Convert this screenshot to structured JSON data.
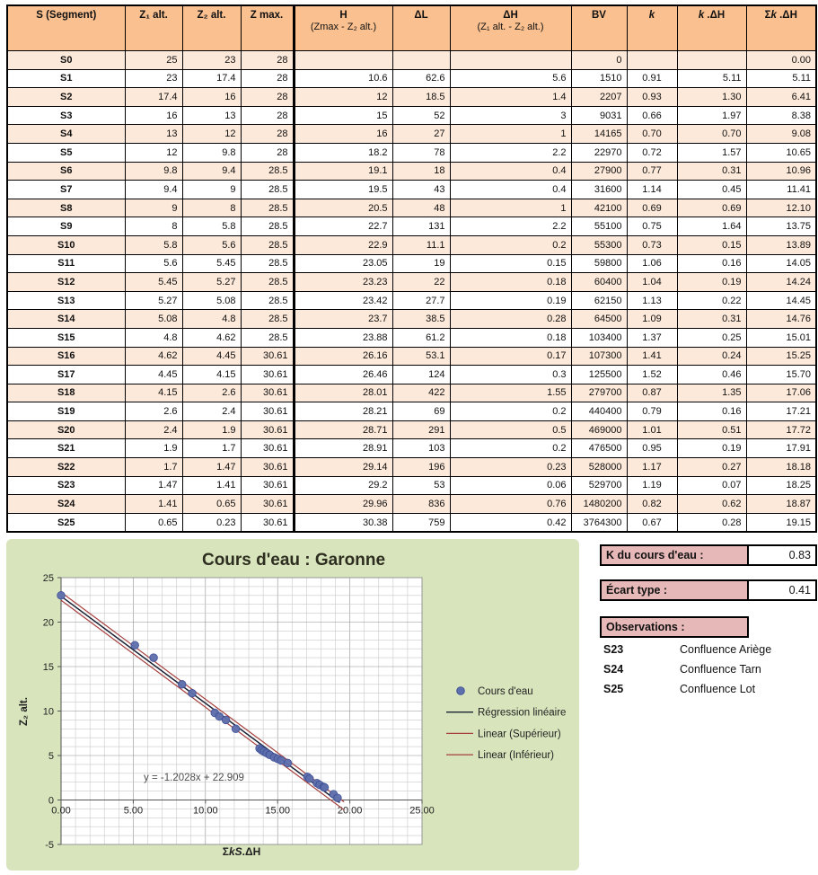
{
  "table": {
    "headers": [
      {
        "post": "S (Segment)"
      },
      {
        "post": "Z₁ alt."
      },
      {
        "post": "Z₂ alt."
      },
      {
        "post": "Z max."
      },
      {
        "post": "H",
        "sub": "(Zmax - Z₂ alt.)"
      },
      {
        "post": "ΔL"
      },
      {
        "post": "ΔH",
        "sub": "(Z₁ alt. - Z₂ alt.)"
      },
      {
        "post": "BV"
      },
      {
        "it": "k"
      },
      {
        "it": "k",
        "post": " .ΔH"
      },
      {
        "pre": "Σ",
        "it": "k",
        "post": " .ΔH"
      }
    ],
    "rows": [
      {
        "id": "S0",
        "cells": [
          "25",
          "23",
          "28",
          "",
          "",
          "",
          "0",
          "",
          "",
          "0.00"
        ]
      },
      {
        "id": "S1",
        "cells": [
          "23",
          "17.4",
          "28",
          "10.6",
          "62.6",
          "5.6",
          "1510",
          "0.91",
          "5.11",
          "5.11"
        ]
      },
      {
        "id": "S2",
        "cells": [
          "17.4",
          "16",
          "28",
          "12",
          "18.5",
          "1.4",
          "2207",
          "0.93",
          "1.30",
          "6.41"
        ]
      },
      {
        "id": "S3",
        "cells": [
          "16",
          "13",
          "28",
          "15",
          "52",
          "3",
          "9031",
          "0.66",
          "1.97",
          "8.38"
        ]
      },
      {
        "id": "S4",
        "cells": [
          "13",
          "12",
          "28",
          "16",
          "27",
          "1",
          "14165",
          "0.70",
          "0.70",
          "9.08"
        ]
      },
      {
        "id": "S5",
        "cells": [
          "12",
          "9.8",
          "28",
          "18.2",
          "78",
          "2.2",
          "22970",
          "0.72",
          "1.57",
          "10.65"
        ]
      },
      {
        "id": "S6",
        "cells": [
          "9.8",
          "9.4",
          "28.5",
          "19.1",
          "18",
          "0.4",
          "27900",
          "0.77",
          "0.31",
          "10.96"
        ]
      },
      {
        "id": "S7",
        "cells": [
          "9.4",
          "9",
          "28.5",
          "19.5",
          "43",
          "0.4",
          "31600",
          "1.14",
          "0.45",
          "11.41"
        ]
      },
      {
        "id": "S8",
        "cells": [
          "9",
          "8",
          "28.5",
          "20.5",
          "48",
          "1",
          "42100",
          "0.69",
          "0.69",
          "12.10"
        ]
      },
      {
        "id": "S9",
        "cells": [
          "8",
          "5.8",
          "28.5",
          "22.7",
          "131",
          "2.2",
          "55100",
          "0.75",
          "1.64",
          "13.75"
        ]
      },
      {
        "id": "S10",
        "cells": [
          "5.8",
          "5.6",
          "28.5",
          "22.9",
          "11.1",
          "0.2",
          "55300",
          "0.73",
          "0.15",
          "13.89"
        ]
      },
      {
        "id": "S11",
        "cells": [
          "5.6",
          "5.45",
          "28.5",
          "23.05",
          "19",
          "0.15",
          "59800",
          "1.06",
          "0.16",
          "14.05"
        ]
      },
      {
        "id": "S12",
        "cells": [
          "5.45",
          "5.27",
          "28.5",
          "23.23",
          "22",
          "0.18",
          "60400",
          "1.04",
          "0.19",
          "14.24"
        ]
      },
      {
        "id": "S13",
        "cells": [
          "5.27",
          "5.08",
          "28.5",
          "23.42",
          "27.7",
          "0.19",
          "62150",
          "1.13",
          "0.22",
          "14.45"
        ]
      },
      {
        "id": "S14",
        "cells": [
          "5.08",
          "4.8",
          "28.5",
          "23.7",
          "38.5",
          "0.28",
          "64500",
          "1.09",
          "0.31",
          "14.76"
        ]
      },
      {
        "id": "S15",
        "cells": [
          "4.8",
          "4.62",
          "28.5",
          "23.88",
          "61.2",
          "0.18",
          "103400",
          "1.37",
          "0.25",
          "15.01"
        ]
      },
      {
        "id": "S16",
        "cells": [
          "4.62",
          "4.45",
          "30.61",
          "26.16",
          "53.1",
          "0.17",
          "107300",
          "1.41",
          "0.24",
          "15.25"
        ]
      },
      {
        "id": "S17",
        "cells": [
          "4.45",
          "4.15",
          "30.61",
          "26.46",
          "124",
          "0.3",
          "125500",
          "1.52",
          "0.46",
          "15.70"
        ]
      },
      {
        "id": "S18",
        "cells": [
          "4.15",
          "2.6",
          "30.61",
          "28.01",
          "422",
          "1.55",
          "279700",
          "0.87",
          "1.35",
          "17.06"
        ]
      },
      {
        "id": "S19",
        "cells": [
          "2.6",
          "2.4",
          "30.61",
          "28.21",
          "69",
          "0.2",
          "440400",
          "0.79",
          "0.16",
          "17.21"
        ]
      },
      {
        "id": "S20",
        "cells": [
          "2.4",
          "1.9",
          "30.61",
          "28.71",
          "291",
          "0.5",
          "469000",
          "1.01",
          "0.51",
          "17.72"
        ]
      },
      {
        "id": "S21",
        "cells": [
          "1.9",
          "1.7",
          "30.61",
          "28.91",
          "103",
          "0.2",
          "476500",
          "0.95",
          "0.19",
          "17.91"
        ]
      },
      {
        "id": "S22",
        "cells": [
          "1.7",
          "1.47",
          "30.61",
          "29.14",
          "196",
          "0.23",
          "528000",
          "1.17",
          "0.27",
          "18.18"
        ]
      },
      {
        "id": "S23",
        "cells": [
          "1.47",
          "1.41",
          "30.61",
          "29.2",
          "53",
          "0.06",
          "529700",
          "1.19",
          "0.07",
          "18.25"
        ]
      },
      {
        "id": "S24",
        "cells": [
          "1.41",
          "0.65",
          "30.61",
          "29.96",
          "836",
          "0.76",
          "1480200",
          "0.82",
          "0.62",
          "18.87"
        ]
      },
      {
        "id": "S25",
        "cells": [
          "0.65",
          "0.23",
          "30.61",
          "30.38",
          "759",
          "0.42",
          "3764300",
          "0.67",
          "0.28",
          "19.15"
        ]
      }
    ]
  },
  "panel": {
    "k_label": "K du cours d'eau :",
    "k_value": "0.83",
    "ecart_label": "Écart type :",
    "ecart_value": "0.41",
    "obs_label": "Observations :",
    "observations": [
      {
        "id": "S23",
        "text": "Confluence Ariège"
      },
      {
        "id": "S24",
        "text": "Confluence Tarn"
      },
      {
        "id": "S25",
        "text": "Confluence Lot"
      }
    ]
  },
  "chart_data": {
    "type": "scatter",
    "title": "Cours d'eau : Garonne",
    "ylabel": "Z₂ alt.",
    "xlabel_parts": [
      {
        "t": "Σ",
        "i": false
      },
      {
        "t": "kS",
        "i": true
      },
      {
        "t": ".ΔH",
        "i": false
      }
    ],
    "xlim": [
      0,
      25
    ],
    "ylim": [
      -5,
      25
    ],
    "xticks": [
      "0.00",
      "5.00",
      "10.00",
      "15.00",
      "20.00",
      "25.00"
    ],
    "yticks": [
      25,
      20,
      15,
      10,
      5,
      0,
      -5
    ],
    "grid_minor_step": 1,
    "grid_major_step": 5,
    "equation": "y = -1.2028x + 22.909",
    "legend": [
      {
        "label": "Cours d'eau",
        "type": "marker"
      },
      {
        "label": "Régression linéaire",
        "type": "line",
        "color": "#1A2233"
      },
      {
        "label": "Linear (Supérieur)",
        "type": "line",
        "color": "#A5403D"
      },
      {
        "label": "Linear (Inférieur)",
        "type": "line",
        "color": "#A5403D"
      }
    ],
    "points": [
      [
        0,
        23
      ],
      [
        5.11,
        17.4
      ],
      [
        6.41,
        16
      ],
      [
        8.38,
        13
      ],
      [
        9.08,
        12
      ],
      [
        10.65,
        9.8
      ],
      [
        10.96,
        9.4
      ],
      [
        11.41,
        9
      ],
      [
        12.1,
        8
      ],
      [
        13.75,
        5.8
      ],
      [
        13.89,
        5.6
      ],
      [
        14.05,
        5.45
      ],
      [
        14.24,
        5.27
      ],
      [
        14.45,
        5.08
      ],
      [
        14.76,
        4.8
      ],
      [
        15.01,
        4.62
      ],
      [
        15.25,
        4.45
      ],
      [
        15.7,
        4.15
      ],
      [
        17.06,
        2.6
      ],
      [
        17.21,
        2.4
      ],
      [
        17.72,
        1.9
      ],
      [
        17.91,
        1.7
      ],
      [
        18.18,
        1.47
      ],
      [
        18.25,
        1.41
      ],
      [
        18.87,
        0.65
      ],
      [
        19.15,
        0.23
      ]
    ],
    "regression": {
      "slope": -1.2028,
      "intercept": 22.909,
      "x_end": 19.3
    },
    "band_offset": 0.45,
    "band_x_end": 19.6
  },
  "colors": {
    "header_orange": "#FAC090",
    "row_peach": "#FDE9D9",
    "chart_green": "#D8E4BC",
    "panel_pink": "#E6B8B7",
    "marker_blue": "#5E6FAD",
    "line_red": "#A5403D",
    "line_dark": "#1A2233"
  }
}
